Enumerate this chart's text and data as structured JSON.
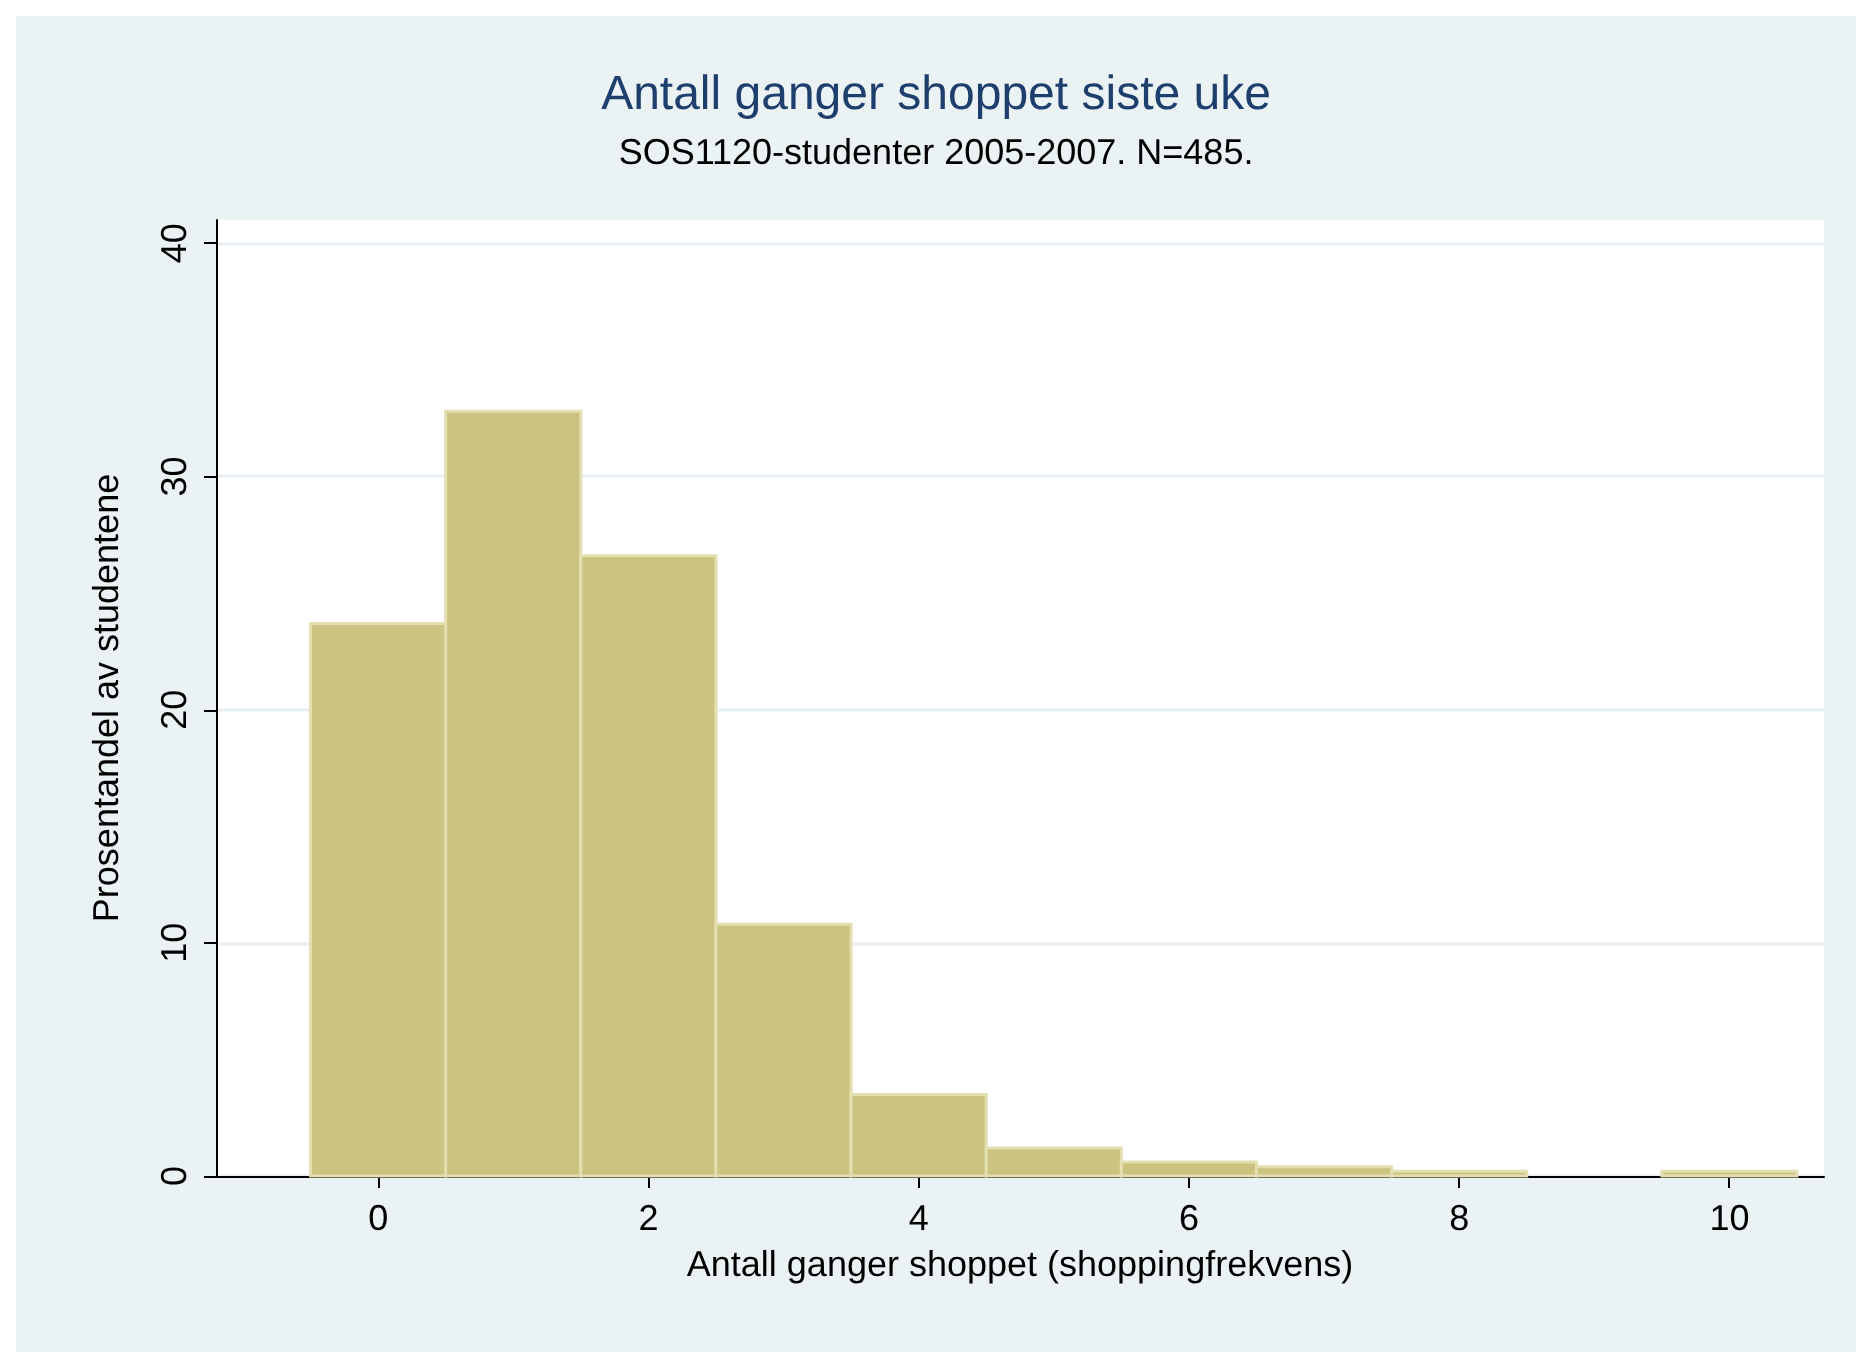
{
  "chart_data": {
    "type": "histogram",
    "title": "Antall ganger shoppet siste uke",
    "subtitle": "SOS1120-studenter 2005-2007. N=485.",
    "xlabel": "Antall ganger shoppet (shoppingfrekvens)",
    "ylabel": "Prosentandel av studentene",
    "bins": [
      -0.5,
      0.5,
      1.5,
      2.5,
      3.5,
      4.5,
      5.5,
      6.5,
      7.5,
      8.5,
      9.5,
      10.5
    ],
    "values": [
      23.7,
      32.8,
      26.6,
      10.8,
      3.5,
      1.2,
      0.6,
      0.4,
      0.2,
      0,
      0.2
    ],
    "color": "#cbc37f",
    "xlim": [
      -1.2,
      10.7
    ],
    "xticks": [
      0,
      2,
      4,
      6,
      8,
      10
    ],
    "ylim": [
      0,
      41
    ],
    "yticks": [
      0,
      10,
      20,
      30,
      40
    ],
    "grid": "y"
  }
}
